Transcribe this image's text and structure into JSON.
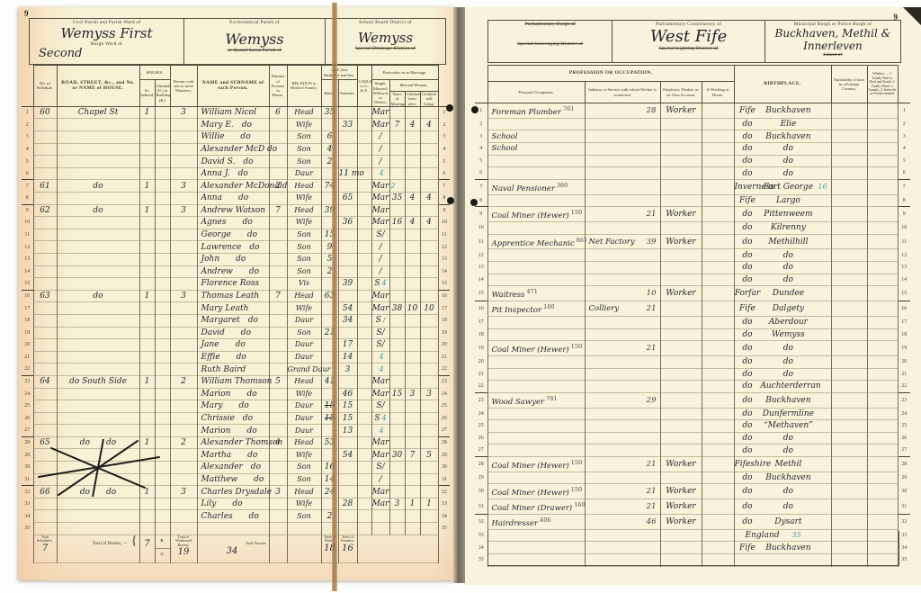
{
  "meta": {
    "left_page_no": "9",
    "right_page_no": "9"
  },
  "left_page": {
    "header": {
      "civil_label": "Civil Parish and Parish Ward of",
      "civil_value": "Wemyss First",
      "burgh_ward_label": "Burgh Ward of",
      "burgh_ward_value": "Second",
      "eccl_label": "Ecclesiastical Parish of",
      "eccl_struck": "or Quoad Sacra Parish of",
      "eccl_value": "Wemyss",
      "school_label": "School Board District of",
      "school_struck": "Special Drainage District of",
      "school_value": "Wemyss"
    },
    "columns": {
      "schedule": "No. of Schedule.",
      "road": "ROAD, STREET, &c., and No. or NAME of HOUSE.",
      "houses": "HOUSES.",
      "inhabited": "In-habited.",
      "uninhabited": "Uninhabited (U.) or Building (B.)",
      "rooms": "Rooms with one or more Windows.",
      "name": "NAME and SURNAME of each Person.",
      "persons": "Number of Persons in House.",
      "relation": "RELATION to Head of Family.",
      "age": "AGE (last Birthday) and Sex.",
      "males": "Males.",
      "females": "Females.",
      "gaelic": "GAELIC or G. & E.",
      "marriage": "Particulars as to Marriage.",
      "single": "Single, Married, Widower, or Widow.",
      "married_women": "Married Women.",
      "years_married": "Years of Marriage.",
      "children_born": "Children born alive.",
      "children_living": "Children still living."
    },
    "rows": [
      {
        "n": 1,
        "hh": true,
        "sched": "60",
        "road": "Chapel St",
        "inh": "1",
        "rooms": "3",
        "name": "William Nicol",
        "pers": "6",
        "rel": "Head",
        "m": "35",
        "mar": "Mar"
      },
      {
        "n": 2,
        "name": "Mary E. do",
        "rel": "Wife",
        "f": "33",
        "mar": "Mar",
        "ym": "7",
        "cb": "4",
        "cl": "4"
      },
      {
        "n": 3,
        "name": "Willie  do",
        "rel": "Son",
        "m": "6",
        "mar": "/"
      },
      {
        "n": 4,
        "name": "Alexander McD do",
        "rel": "Son",
        "m": "4",
        "mar": "/"
      },
      {
        "n": 5,
        "name": "David S. do",
        "rel": "Son",
        "m": "2",
        "mar": "/"
      },
      {
        "n": 6,
        "name": "Anna J. do",
        "rel": "Daur",
        "f": "11 mo",
        "tick": "4"
      },
      {
        "n": 7,
        "hh": true,
        "sched": "61",
        "road": "do",
        "inh": "1",
        "rooms": "3",
        "name": "Alexander McDonald",
        "pers": "2",
        "rel": "Head",
        "m": "74",
        "mar": "Mar",
        "tick": "2"
      },
      {
        "n": 8,
        "name": "Anna  do",
        "rel": "Wife",
        "f": "65",
        "mar": "Mar",
        "ym": "35",
        "cb": "4",
        "cl": "4"
      },
      {
        "n": 9,
        "hh": true,
        "sched": "62",
        "road": "do",
        "inh": "1",
        "rooms": "3",
        "name": "Andrew Watson",
        "pers": "7",
        "rel": "Head",
        "m": "39",
        "mar": "Mar"
      },
      {
        "n": 10,
        "name": "Agnes  do",
        "rel": "Wife",
        "f": "36",
        "mar": "Mar",
        "ym": "16",
        "cb": "4",
        "cl": "4"
      },
      {
        "n": 11,
        "name": "George  do",
        "rel": "Son",
        "m": "15",
        "mar": "S/"
      },
      {
        "n": 12,
        "name": "Lawrence do",
        "rel": "Son",
        "m": "9",
        "mar": "/"
      },
      {
        "n": 13,
        "name": "John  do",
        "rel": "Son",
        "m": "5",
        "mar": "/"
      },
      {
        "n": 14,
        "name": "Andrew  do",
        "rel": "Son",
        "m": "2",
        "mar": "/"
      },
      {
        "n": 15,
        "name": "Florence Ross",
        "rel": "Vis",
        "f": "39",
        "mar": "S",
        "tick": "4"
      },
      {
        "n": 16,
        "hh": true,
        "sched": "63",
        "road": "do",
        "inh": "1",
        "rooms": "3",
        "name": "Thomas Leath",
        "pers": "7",
        "rel": "Head",
        "m": "63",
        "mar": "Mar"
      },
      {
        "n": 17,
        "name": "Mary Leath",
        "rel": "Wife",
        "f": "54",
        "mar": "Mar",
        "ym": "38",
        "cb": "10",
        "cl": "10"
      },
      {
        "n": 18,
        "name": "Margaret do",
        "rel": "Daur",
        "f": "34",
        "mar": "S",
        "tick": "/"
      },
      {
        "n": 19,
        "name": "David  do",
        "rel": "Son",
        "m": "21",
        "mar": "S/"
      },
      {
        "n": 20,
        "name": "Jane  do",
        "rel": "Daur",
        "f": "17",
        "mar": "S/"
      },
      {
        "n": 21,
        "name": "Effie  do",
        "rel": "Daur",
        "f": "14",
        "tick": "4"
      },
      {
        "n": 22,
        "name": "Ruth Baird",
        "rel": "Grand Daur",
        "f": "3",
        "tick": "4"
      },
      {
        "n": 23,
        "hh": true,
        "sched": "64",
        "road": "do South Side",
        "inh": "1",
        "rooms": "2",
        "name": "William Thomson",
        "pers": "5",
        "rel": "Head",
        "m": "41",
        "mar": "Mar"
      },
      {
        "n": 24,
        "name": "Marion  do",
        "rel": "Wife",
        "f": "46",
        "mar": "Mar",
        "ym": "15",
        "cb": "3",
        "cl": "3"
      },
      {
        "n": 25,
        "name": "Mary  do",
        "rel": "Daur",
        "mstruck": "15",
        "f": "15",
        "mar": "S/"
      },
      {
        "n": 26,
        "name": "Chrissie do",
        "rel": "Daur",
        "mstruck": "15",
        "f": "15",
        "mar": "S",
        "tick": "4"
      },
      {
        "n": 27,
        "name": "Marion  do",
        "rel": "Daur",
        "f": "13",
        "tick": "4"
      },
      {
        "n": 28,
        "hh": true,
        "sched": "65",
        "road": "do  do",
        "inh": "1",
        "rooms": "2",
        "name": "Alexander Thomson",
        "pers": "4",
        "rel": "Head",
        "m": "53",
        "mar": "Mar"
      },
      {
        "n": 29,
        "name": "Martha  do",
        "rel": "Wife",
        "f": "54",
        "mar": "Mar",
        "ym": "30",
        "cb": "7",
        "cl": "5"
      },
      {
        "n": 30,
        "name": "Alexander do",
        "rel": "Son",
        "m": "16",
        "mar": "S/"
      },
      {
        "n": 31,
        "name": "Matthew  do",
        "rel": "Son",
        "m": "14",
        "mar": "/"
      },
      {
        "n": 32,
        "hh": true,
        "sched": "66",
        "road": "do  do",
        "inh": "1",
        "rooms": "3",
        "name": "Charles Drysdale",
        "pers": "3",
        "rel": "Head",
        "m": "24",
        "mar": "Mar"
      },
      {
        "n": 33,
        "name": "Lily  do",
        "rel": "Wife",
        "f": "28",
        "mar": "Mar",
        "ym": "3",
        "cb": "1",
        "cl": "1"
      },
      {
        "n": 34,
        "name": "Charles  do",
        "rel": "Son",
        "m": "2"
      },
      {
        "n": 35
      }
    ],
    "footer": {
      "schedules_label": "Total Schedules.",
      "schedules_value": "7",
      "houses_label": "Total of Houses, —",
      "houses_value": "7",
      "b_label": "B.",
      "u_label": "U.",
      "rooms_label": "Total of Windowed Rooms.",
      "rooms_value": "19",
      "persons_label": "Total Persons.",
      "persons_value": "34",
      "males_label": "Total of Males.",
      "males_value": "18",
      "females_label": "Total of Females.",
      "females_value": "16"
    }
  },
  "right_page": {
    "header": {
      "parl_burgh_struck": "Parliamentary Burgh of",
      "scavenging_struck": "Special Scavenging District of",
      "constituency_label": "Parliamentary Constituency of",
      "constituency_value": "West Fife",
      "lighting_struck": "Special Lighting District of",
      "municipal_label": "Municipal Burgh or Police Burgh of",
      "municipal_value": "Buckhaven, Methil & Innerleven",
      "island_struck": "Island of"
    },
    "columns": {
      "profession_group": "PROFESSION OR OCCUPATION.",
      "occupation": "Personal Occupation.",
      "industry": "Industry or Service with which Worker is connected.",
      "employer": "Employer, Worker, or on Own Account.",
      "home": "If Working at Home.",
      "birthplace": "BIRTHPLACE.",
      "nationality": "Nationality if born in a Foreign Country.",
      "infirmity": "Whether — 1. Totally Deaf or Deaf and Dumb. 2. Totally Blind. 3. Lunatic. 4. Imbecile or Feeble-minded."
    },
    "rows": [
      {
        "n": 1,
        "occ": "Foreman Plumber",
        "code": "761",
        "icode": "28",
        "emp": "Worker",
        "b1": "Fife",
        "b2": "Buckhaven"
      },
      {
        "n": 2,
        "b1": "do",
        "b2": "Elie"
      },
      {
        "n": 3,
        "occ": "School",
        "b1": "do",
        "b2": "Buckhaven"
      },
      {
        "n": 4,
        "occ": "School",
        "b1": "do",
        "b2": "do"
      },
      {
        "n": 5,
        "b1": "do",
        "b2": "do"
      },
      {
        "n": 6,
        "b1": "do",
        "b2": "do"
      },
      {
        "n": 7,
        "occ": "Naval Pensioner",
        "code": "360",
        "b1": "Inverness",
        "b2": "Fort George",
        "blue": "16"
      },
      {
        "n": 8,
        "b1": "Fife",
        "b2": "Largo"
      },
      {
        "n": 9,
        "occ": "Coal Miner (Hewer)",
        "code": "150",
        "icode": "21",
        "emp": "Worker",
        "b1": "do",
        "b2": "Pittenweem"
      },
      {
        "n": 10,
        "b1": "do",
        "b2": "Kilrenny"
      },
      {
        "n": 11,
        "occ": "Apprentice Mechanic",
        "code": "861",
        "ind": "Net Factory",
        "icode": "39",
        "emp": "Worker",
        "b1": "do",
        "b2": "Methilhill"
      },
      {
        "n": 12,
        "b1": "do",
        "b2": "do"
      },
      {
        "n": 13,
        "b1": "do",
        "b2": "do"
      },
      {
        "n": 14,
        "b1": "do",
        "b2": "do"
      },
      {
        "n": 15,
        "occ": "Waitress",
        "code": "471",
        "icode": "10",
        "emp": "Worker",
        "b1": "Forfar",
        "b2": "Dundee"
      },
      {
        "n": 16,
        "occ": "Pit Inspector",
        "code": "160",
        "ind": "Colliery",
        "icode": "21",
        "b1": "Fife",
        "b2": "Dalgety"
      },
      {
        "n": 17,
        "b1": "do",
        "b2": "Aberdour"
      },
      {
        "n": 18,
        "b1": "do",
        "b2": "Wemyss"
      },
      {
        "n": 19,
        "occ": "Coal Miner (Hewer)",
        "code": "150",
        "icode": "21",
        "b1": "do",
        "b2": "do"
      },
      {
        "n": 20,
        "b1": "do",
        "b2": "do"
      },
      {
        "n": 21,
        "b1": "do",
        "b2": "do"
      },
      {
        "n": 22,
        "b1": "do",
        "b2": "Auchterderran"
      },
      {
        "n": 23,
        "occ": "Wood Sawyer",
        "code": "761",
        "icode": "29",
        "b1": "do",
        "b2": "Buckhaven"
      },
      {
        "n": 24,
        "b1": "do",
        "b2": "Dunfermline"
      },
      {
        "n": 25,
        "b1": "do",
        "b2": "“Methaven”"
      },
      {
        "n": 26,
        "b1": "do",
        "b2": "do"
      },
      {
        "n": 27,
        "b1": "do",
        "b2": "do"
      },
      {
        "n": 28,
        "occ": "Coal Miner (Hewer)",
        "code": "150",
        "icode": "21",
        "emp": "Worker",
        "b1": "Fifeshire",
        "b2": "Methil"
      },
      {
        "n": 29,
        "b1": "do",
        "b2": "Buckhaven"
      },
      {
        "n": 30,
        "occ": "Coal Miner (Hewer)",
        "code": "150",
        "icode": "21",
        "emp": "Worker",
        "b1": "do",
        "b2": "do"
      },
      {
        "n": 31,
        "occ": "Coal Miner (Drawer)",
        "code": "160",
        "icode": "21",
        "emp": "Worker",
        "b1": "do",
        "b2": "do"
      },
      {
        "n": 32,
        "occ": "Hairdresser",
        "code": "406",
        "icode": "46",
        "emp": "Worker",
        "b1": "do",
        "b2": "Dysart"
      },
      {
        "n": 33,
        "b2": "England",
        "blue": "35"
      },
      {
        "n": 34,
        "b1": "Fife",
        "b2": "Buckhaven"
      },
      {
        "n": 35
      }
    ]
  }
}
